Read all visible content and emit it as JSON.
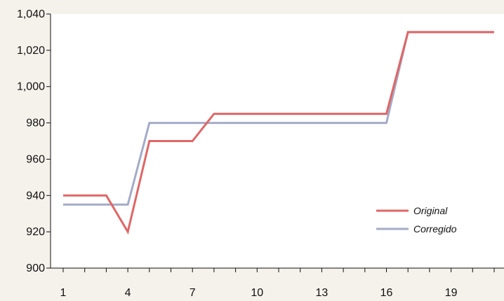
{
  "chart_data": {
    "type": "line",
    "x": [
      1,
      2,
      3,
      4,
      5,
      6,
      7,
      8,
      9,
      10,
      11,
      12,
      13,
      14,
      15,
      16,
      17,
      18,
      19,
      20,
      21
    ],
    "x_tick_labels": [
      "1",
      "4",
      "7",
      "10",
      "13",
      "16",
      "19"
    ],
    "x_tick_values": [
      1,
      4,
      7,
      10,
      13,
      16,
      19
    ],
    "y_tick_labels": [
      "900",
      "920",
      "940",
      "960",
      "980",
      "1,000",
      "1,020",
      "1,040"
    ],
    "y_tick_values": [
      900,
      920,
      940,
      960,
      980,
      1000,
      1020,
      1040
    ],
    "ylim": [
      900,
      1040
    ],
    "xlim": [
      0.5,
      21.5
    ],
    "grid": false,
    "legend_position": "bottom-right",
    "series": [
      {
        "name": "Original",
        "color": "#e06666",
        "values": [
          940,
          940,
          940,
          920,
          970,
          970,
          970,
          985,
          985,
          985,
          985,
          985,
          985,
          985,
          985,
          985,
          1030,
          1030,
          1030,
          1030,
          1030
        ]
      },
      {
        "name": "Corregido",
        "color": "#a4abc8",
        "values": [
          935,
          935,
          935,
          935,
          980,
          980,
          980,
          980,
          980,
          980,
          980,
          980,
          980,
          980,
          980,
          980,
          1030,
          1030,
          1030,
          1030,
          1030
        ]
      }
    ]
  },
  "colors": {
    "background": "#f5f1eb",
    "plot_area": "#ffffff",
    "axis": "#111111"
  }
}
